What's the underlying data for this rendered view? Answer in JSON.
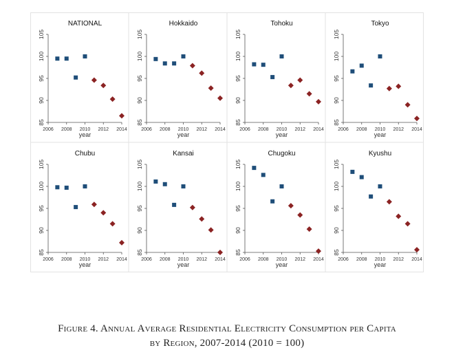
{
  "figure": {
    "caption_line1": "Figure 4. Annual Average Residential Electricity Consumption per Capita",
    "caption_line2": "by Region, 2007-2014 (2010 = 100)"
  },
  "chart_data": [
    {
      "type": "scatter",
      "title": "NATIONAL",
      "xlabel": "year",
      "xlim": [
        2006,
        2014
      ],
      "ylim": [
        85,
        105
      ],
      "xticks": [
        2006,
        2008,
        2010,
        2012,
        2014
      ],
      "yticks": [
        85,
        90,
        95,
        100,
        105
      ],
      "series": [
        {
          "marker": "square",
          "color": "#1f4e79",
          "x": [
            2007,
            2008,
            2009,
            2010
          ],
          "y": [
            99.5,
            99.5,
            95.2,
            100
          ]
        },
        {
          "marker": "diamond",
          "color": "#8b2323",
          "x": [
            2011,
            2012,
            2013,
            2014
          ],
          "y": [
            94.6,
            93.4,
            90.3,
            86.5
          ]
        }
      ]
    },
    {
      "type": "scatter",
      "title": "Hokkaido",
      "xlabel": "year",
      "xlim": [
        2006,
        2014
      ],
      "ylim": [
        85,
        105
      ],
      "xticks": [
        2006,
        2008,
        2010,
        2012,
        2014
      ],
      "yticks": [
        85,
        90,
        95,
        100,
        105
      ],
      "series": [
        {
          "marker": "square",
          "color": "#1f4e79",
          "x": [
            2007,
            2008,
            2009,
            2010
          ],
          "y": [
            99.4,
            98.4,
            98.4,
            100
          ]
        },
        {
          "marker": "diamond",
          "color": "#8b2323",
          "x": [
            2011,
            2012,
            2013,
            2014
          ],
          "y": [
            97.9,
            96.2,
            92.8,
            90.5
          ]
        }
      ]
    },
    {
      "type": "scatter",
      "title": "Tohoku",
      "xlabel": "year",
      "xlim": [
        2006,
        2014
      ],
      "ylim": [
        85,
        105
      ],
      "xticks": [
        2006,
        2008,
        2010,
        2012,
        2014
      ],
      "yticks": [
        85,
        90,
        95,
        100,
        105
      ],
      "series": [
        {
          "marker": "square",
          "color": "#1f4e79",
          "x": [
            2007,
            2008,
            2009,
            2010
          ],
          "y": [
            98.2,
            98.1,
            95.3,
            100
          ]
        },
        {
          "marker": "diamond",
          "color": "#8b2323",
          "x": [
            2011,
            2012,
            2013,
            2014
          ],
          "y": [
            93.4,
            94.6,
            91.5,
            89.7
          ]
        }
      ]
    },
    {
      "type": "scatter",
      "title": "Tokyo",
      "xlabel": "year",
      "xlim": [
        2006,
        2014
      ],
      "ylim": [
        85,
        105
      ],
      "xticks": [
        2006,
        2008,
        2010,
        2012,
        2014
      ],
      "yticks": [
        85,
        90,
        95,
        100,
        105
      ],
      "series": [
        {
          "marker": "square",
          "color": "#1f4e79",
          "x": [
            2007,
            2008,
            2009,
            2010
          ],
          "y": [
            96.6,
            97.9,
            93.4,
            100
          ]
        },
        {
          "marker": "diamond",
          "color": "#8b2323",
          "x": [
            2011,
            2012,
            2013,
            2014
          ],
          "y": [
            92.7,
            93.2,
            89.0,
            85.9
          ]
        }
      ]
    },
    {
      "type": "scatter",
      "title": "Chubu",
      "xlabel": "year",
      "xlim": [
        2006,
        2014
      ],
      "ylim": [
        85,
        105
      ],
      "xticks": [
        2006,
        2008,
        2010,
        2012,
        2014
      ],
      "yticks": [
        85,
        90,
        95,
        100,
        105
      ],
      "series": [
        {
          "marker": "square",
          "color": "#1f4e79",
          "x": [
            2007,
            2008,
            2009,
            2010
          ],
          "y": [
            99.8,
            99.7,
            95.3,
            100
          ]
        },
        {
          "marker": "diamond",
          "color": "#8b2323",
          "x": [
            2011,
            2012,
            2013,
            2014
          ],
          "y": [
            95.9,
            94.0,
            91.5,
            87.2
          ]
        }
      ]
    },
    {
      "type": "scatter",
      "title": "Kansai",
      "xlabel": "year",
      "xlim": [
        2006,
        2014
      ],
      "ylim": [
        85,
        105
      ],
      "xticks": [
        2006,
        2008,
        2010,
        2012,
        2014
      ],
      "yticks": [
        85,
        90,
        95,
        100,
        105
      ],
      "series": [
        {
          "marker": "square",
          "color": "#1f4e79",
          "x": [
            2007,
            2008,
            2009,
            2010
          ],
          "y": [
            101.1,
            100.5,
            95.8,
            100
          ]
        },
        {
          "marker": "diamond",
          "color": "#8b2323",
          "x": [
            2011,
            2012,
            2013,
            2014
          ],
          "y": [
            95.2,
            92.6,
            90.1,
            85.0
          ]
        }
      ]
    },
    {
      "type": "scatter",
      "title": "Chugoku",
      "xlabel": "year",
      "xlim": [
        2006,
        2014
      ],
      "ylim": [
        85,
        105
      ],
      "xticks": [
        2006,
        2008,
        2010,
        2012,
        2014
      ],
      "yticks": [
        85,
        90,
        95,
        100,
        105
      ],
      "series": [
        {
          "marker": "square",
          "color": "#1f4e79",
          "x": [
            2007,
            2008,
            2009,
            2010
          ],
          "y": [
            104.2,
            102.6,
            96.6,
            100
          ]
        },
        {
          "marker": "diamond",
          "color": "#8b2323",
          "x": [
            2011,
            2012,
            2013,
            2014
          ],
          "y": [
            95.6,
            93.5,
            90.3,
            85.3
          ]
        }
      ]
    },
    {
      "type": "scatter",
      "title": "Kyushu",
      "xlabel": "year",
      "xlim": [
        2006,
        2014
      ],
      "ylim": [
        85,
        105
      ],
      "xticks": [
        2006,
        2008,
        2010,
        2012,
        2014
      ],
      "yticks": [
        85,
        90,
        95,
        100,
        105
      ],
      "series": [
        {
          "marker": "square",
          "color": "#1f4e79",
          "x": [
            2007,
            2008,
            2009,
            2010
          ],
          "y": [
            103.3,
            102.1,
            97.7,
            100
          ]
        },
        {
          "marker": "diamond",
          "color": "#8b2323",
          "x": [
            2011,
            2012,
            2013,
            2014
          ],
          "y": [
            96.5,
            93.2,
            91.5,
            85.6
          ]
        }
      ]
    }
  ]
}
